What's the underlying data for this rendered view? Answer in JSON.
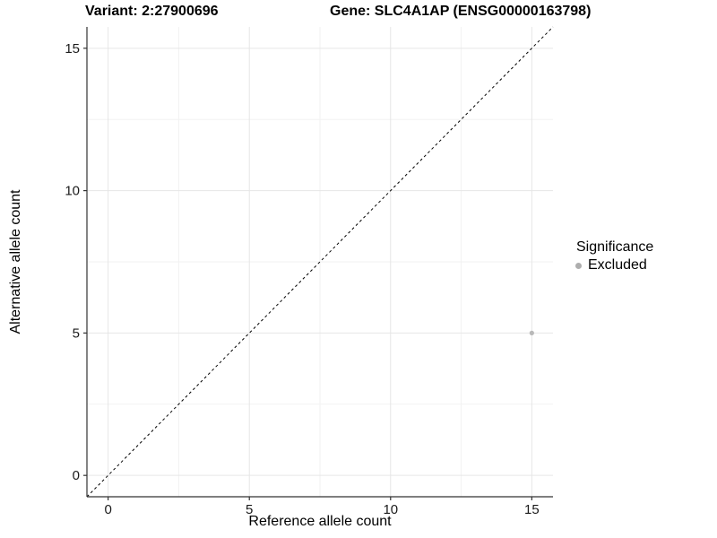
{
  "title": {
    "variant": "Variant: 2:27900696",
    "gene": "Gene: SLC4A1AP (ENSG00000163798)"
  },
  "chart_data": {
    "type": "scatter",
    "xlabel": "Reference allele count",
    "ylabel": "Alternative allele count",
    "xlim": [
      -0.75,
      15.75
    ],
    "ylim": [
      -0.75,
      15.75
    ],
    "x_major_ticks": [
      0,
      5,
      10,
      15
    ],
    "y_major_ticks": [
      0,
      5,
      10,
      15
    ],
    "x_minor_ticks": [
      2.5,
      7.5,
      12.5
    ],
    "y_minor_ticks": [
      2.5,
      7.5,
      12.5
    ],
    "grid": true,
    "points": [
      {
        "x": 15,
        "y": 5,
        "series": "Excluded"
      }
    ],
    "reference_line": {
      "slope": 1,
      "intercept": 0,
      "style": "dashed",
      "color": "#000000"
    },
    "legend": {
      "title": "Significance",
      "position": "right",
      "items": [
        {
          "label": "Excluded",
          "color": "#aeaeae"
        }
      ]
    }
  },
  "colors": {
    "point": "#b9b9b9",
    "grid_major": "#e6e6e6",
    "grid_minor": "#f2f2f2",
    "axis_line": "#333333",
    "tick_mark": "#333333",
    "text": "#000000"
  }
}
